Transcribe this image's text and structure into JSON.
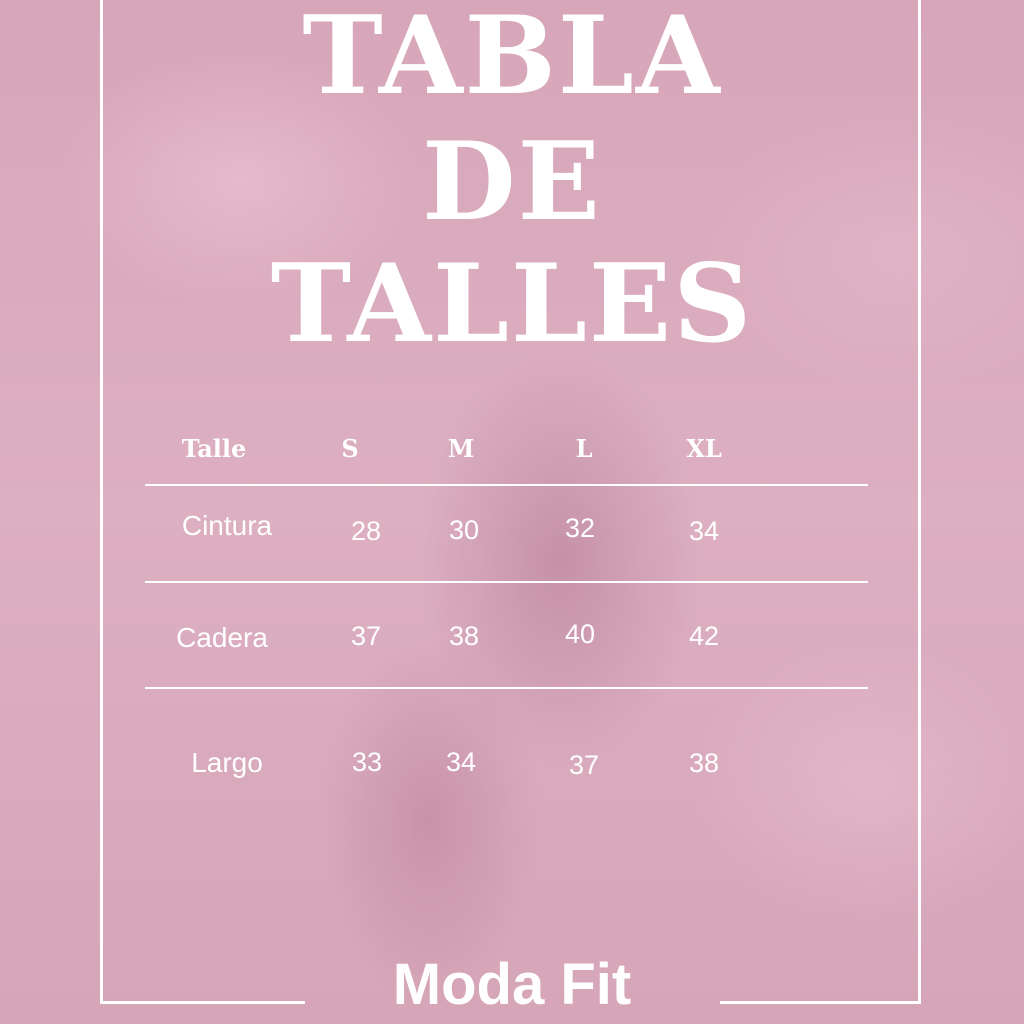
{
  "title_lines": [
    "TABLA",
    "DE",
    "TALLES"
  ],
  "table": {
    "header": [
      "Talle",
      "S",
      "M",
      "L",
      "XL"
    ],
    "rows": [
      {
        "label": "Cintura",
        "values": [
          "28",
          "30",
          "32",
          "34"
        ]
      },
      {
        "label": "Cadera",
        "values": [
          "37",
          "38",
          "40",
          "42"
        ]
      },
      {
        "label": "Largo",
        "values": [
          "33",
          "34",
          "37",
          "38"
        ]
      }
    ]
  },
  "brand": "Moda Fit",
  "colors": {
    "background": "#d9a9bb",
    "text": "#ffffff"
  }
}
